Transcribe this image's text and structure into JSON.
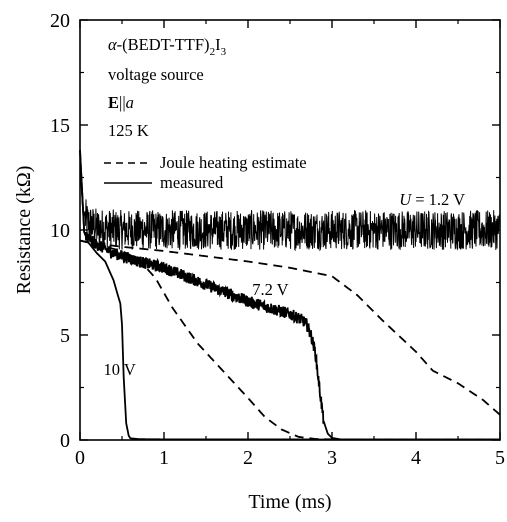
{
  "chart_data": {
    "type": "line",
    "xlabel": "Time (ms)",
    "ylabel": "Resistance (kΩ)",
    "xlim": [
      0,
      5
    ],
    "ylim": [
      0,
      20
    ],
    "x_ticks": [
      "0",
      "1",
      "2",
      "3",
      "4",
      "5"
    ],
    "y_ticks": [
      "0",
      "5",
      "10",
      "15",
      "20"
    ],
    "grid": false,
    "annotations": {
      "material": "α-(BEDT-TTF)",
      "material_sub_2": "2",
      "material_i": "I",
      "material_sub_3": "3",
      "source": "voltage source",
      "field_bold": "E",
      "field_sym": "||",
      "field_axis": "a",
      "temperature": "125 K"
    },
    "legend": {
      "placement": "top-left",
      "entries": [
        {
          "label": "Joule heating estimate",
          "style": "dashed"
        },
        {
          "label": "measured",
          "style": "solid"
        }
      ]
    },
    "series": [
      {
        "name": "U = 1.2 V",
        "style": "solid",
        "noisy": true,
        "x": [
          0,
          0.01,
          0.03,
          0.06,
          0.1,
          0.2,
          0.5,
          1,
          2,
          3,
          4,
          5
        ],
        "y": [
          14,
          12.3,
          11.1,
          10.6,
          10.3,
          10.1,
          10.0,
          10.0,
          10.0,
          10.0,
          10.0,
          10.0
        ]
      },
      {
        "name": "7.2 V",
        "style": "solid",
        "noisy": true,
        "x": [
          0,
          0.05,
          0.1,
          0.2,
          0.4,
          0.7,
          1.0,
          1.5,
          2.0,
          2.5,
          2.65,
          2.7,
          2.75,
          2.8,
          2.85,
          2.9,
          2.95,
          3.0,
          3.1,
          3.5,
          4,
          5
        ],
        "y": [
          13.8,
          9.9,
          9.6,
          9.3,
          8.9,
          8.5,
          8.2,
          7.4,
          6.6,
          6.0,
          5.7,
          5.5,
          5.0,
          4.2,
          2.5,
          0.9,
          0.3,
          0.1,
          0.03,
          0.02,
          0.02,
          0.02
        ]
      },
      {
        "name": "10 V",
        "style": "solid",
        "noisy": false,
        "x": [
          0,
          0.05,
          0.1,
          0.2,
          0.3,
          0.4,
          0.45,
          0.48,
          0.5,
          0.52,
          0.55,
          0.58,
          0.6,
          0.7,
          1,
          5
        ],
        "y": [
          13.8,
          9.9,
          9.4,
          8.9,
          8.5,
          7.6,
          6.9,
          6.5,
          5.5,
          3.0,
          0.8,
          0.2,
          0.08,
          0.04,
          0.03,
          0.02
        ]
      },
      {
        "name": "Joule heating estimate (1.2 V)",
        "style": "dashed",
        "noisy": false,
        "x": [
          0,
          0.05,
          0.2,
          0.5,
          1,
          2,
          2.5,
          3,
          3.3,
          3.6,
          4,
          4.2,
          4.5,
          4.8,
          5
        ],
        "y": [
          9.5,
          9.45,
          9.35,
          9.2,
          9.0,
          8.5,
          8.2,
          7.8,
          6.9,
          5.7,
          4.2,
          3.3,
          2.7,
          1.9,
          1.2
        ]
      },
      {
        "name": "Joule heating estimate (7.2 V)",
        "style": "dashed",
        "noisy": false,
        "x": [
          0,
          0.2,
          0.5,
          0.7,
          0.9,
          1.1,
          1.4,
          1.7,
          2.0,
          2.2,
          2.4,
          2.6,
          2.8,
          3.0
        ],
        "y": [
          9.5,
          9.3,
          9.0,
          8.6,
          7.7,
          6.3,
          4.6,
          3.3,
          2.0,
          1.1,
          0.5,
          0.15,
          0.05,
          0.03
        ]
      }
    ],
    "labels": [
      {
        "text_main": "U",
        "text_rest": " = 1.2 V",
        "x": 3.8,
        "y": 11.2
      },
      {
        "text_main": "",
        "text_rest": "7.2 V",
        "x": 2.05,
        "y": 6.9
      },
      {
        "text_main": "",
        "text_rest": "10 V",
        "x": 0.28,
        "y": 3.1
      }
    ]
  }
}
